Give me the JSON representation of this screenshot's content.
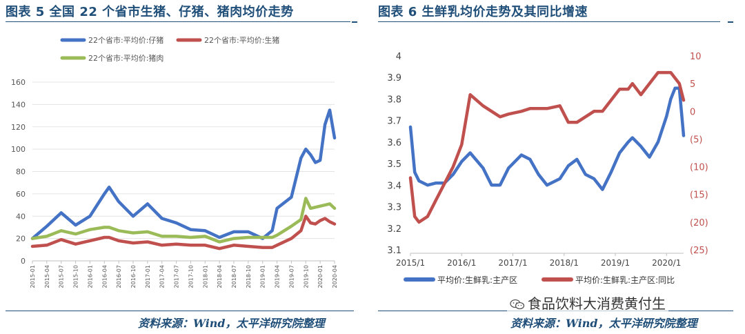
{
  "left_panel": {
    "title": "图表 5 全国 22 个省市生猪、仔猪、猪肉均价走势",
    "source": "资料来源：Wind，太平洋研究院整理"
  },
  "right_panel": {
    "title": "图表 6 生鲜乳均价走势及其同比增速",
    "source": "资料来源：Wind，太平洋研究院整理"
  },
  "watermark": {
    "text": "食品饮料大消费黄付生",
    "icon": "wechat-icon"
  },
  "colors": {
    "blue": "#4472c4",
    "red": "#c0504d",
    "green": "#9bbb59",
    "title": "#1f4e79"
  },
  "chart_data": [
    {
      "type": "line",
      "legend_position": "top",
      "grid": true,
      "ylim": [
        0,
        160
      ],
      "yticks": [
        "0",
        "20",
        "40",
        "60",
        "80",
        "100",
        "120",
        "140",
        "160"
      ],
      "xticks": [
        "2015-01",
        "2015-04",
        "2015-07",
        "2015-10",
        "2016-01",
        "2016-04",
        "2016-07",
        "2016-10",
        "2017-01",
        "2017-04",
        "2017-07",
        "2017-10",
        "2018-01",
        "2018-04",
        "2018-07",
        "2018-10",
        "2019-01",
        "2019-04",
        "2019-07",
        "2019-10",
        "2020-01",
        "2020-04"
      ],
      "x": [
        "2015-01",
        "2015-04",
        "2015-07",
        "2015-10",
        "2016-01",
        "2016-04",
        "2016-05",
        "2016-07",
        "2016-10",
        "2017-01",
        "2017-04",
        "2017-07",
        "2017-10",
        "2018-01",
        "2018-04",
        "2018-07",
        "2018-10",
        "2019-01",
        "2019-03",
        "2019-04",
        "2019-07",
        "2019-09",
        "2019-10",
        "2019-11",
        "2019-12",
        "2020-01",
        "2020-02",
        "2020-03",
        "2020-04"
      ],
      "series": [
        {
          "name": "22个省市:平均价:仔猪",
          "color": "#4472c4",
          "values": [
            20,
            31,
            43,
            32,
            40,
            60,
            66,
            53,
            40,
            51,
            38,
            34,
            28,
            27,
            21,
            26,
            26,
            20,
            27,
            47,
            57,
            92,
            100,
            95,
            88,
            90,
            122,
            135,
            110
          ]
        },
        {
          "name": "22个省市:平均价:生猪",
          "color": "#c0504d",
          "values": [
            13,
            14,
            19,
            15,
            18,
            21,
            21,
            18,
            16,
            17,
            14,
            15,
            14,
            14,
            11,
            14,
            13,
            12,
            12,
            14,
            20,
            27,
            40,
            34,
            33,
            36,
            38,
            35,
            33
          ]
        },
        {
          "name": "22个省市:平均价:猪肉",
          "color": "#9bbb59",
          "values": [
            20,
            22,
            27,
            24,
            28,
            30,
            30,
            27,
            25,
            26,
            22,
            22,
            21,
            22,
            17,
            20,
            21,
            21,
            21,
            23,
            31,
            37,
            56,
            47,
            48,
            49,
            50,
            51,
            47
          ]
        }
      ]
    },
    {
      "type": "line",
      "legend_position": "bottom",
      "grid": false,
      "ylim": [
        3.1,
        4.0
      ],
      "y2lim": [
        -25,
        10
      ],
      "yticks": [
        "3.1",
        "3.2",
        "3.3",
        "3.4",
        "3.5",
        "3.6",
        "3.7",
        "3.8",
        "3.9",
        "4"
      ],
      "y2ticks": [
        "10",
        "5",
        "0",
        "(5)",
        "(10)",
        "(15)",
        "(20)",
        "(25)"
      ],
      "xticks": [
        "2015/1",
        "2016/1",
        "2017/1",
        "2018/1",
        "2019/1",
        "2020/1"
      ],
      "x": [
        "2015-01",
        "2015-02",
        "2015-03",
        "2015-05",
        "2015-07",
        "2015-09",
        "2015-11",
        "2016-01",
        "2016-03",
        "2016-06",
        "2016-08",
        "2016-10",
        "2016-12",
        "2017-03",
        "2017-05",
        "2017-07",
        "2017-09",
        "2017-12",
        "2018-02",
        "2018-04",
        "2018-06",
        "2018-08",
        "2018-10",
        "2018-12",
        "2019-02",
        "2019-04",
        "2019-05",
        "2019-07",
        "2019-09",
        "2019-11",
        "2020-01",
        "2020-02",
        "2020-03",
        "2020-04",
        "2020-05"
      ],
      "series": [
        {
          "name": "平均价:生鲜乳:主产区",
          "axis": "left",
          "color": "#4472c4",
          "values": [
            3.67,
            3.46,
            3.42,
            3.4,
            3.41,
            3.41,
            3.45,
            3.51,
            3.55,
            3.48,
            3.4,
            3.4,
            3.48,
            3.54,
            3.52,
            3.45,
            3.4,
            3.43,
            3.49,
            3.52,
            3.45,
            3.43,
            3.38,
            3.46,
            3.55,
            3.6,
            3.62,
            3.58,
            3.53,
            3.6,
            3.72,
            3.8,
            3.85,
            3.85,
            3.63
          ]
        },
        {
          "name": "平均价:生鲜乳:主产区:同比",
          "axis": "right",
          "color": "#c0504d",
          "values": [
            -12,
            -19,
            -20,
            -19,
            -16,
            -13,
            -10,
            -6,
            3,
            1,
            0,
            -1,
            -0.5,
            0,
            0.5,
            0.5,
            0.5,
            1,
            -2,
            -2,
            -1,
            0,
            0,
            2,
            4,
            4,
            5,
            3,
            5,
            7,
            7,
            7,
            6,
            5,
            2
          ]
        }
      ]
    }
  ]
}
